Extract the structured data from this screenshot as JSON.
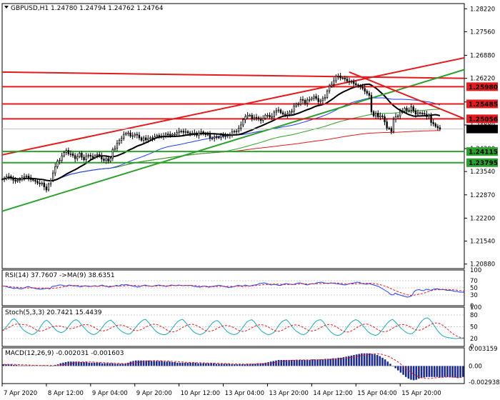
{
  "chart_data": [
    {
      "type": "candlestick",
      "symbol_line": "GBPUSD,H1  1.24780 1.24794 1.24762 1.24764",
      "price_axis": {
        "ticks": [
          "1.28220",
          "1.27560",
          "1.26880",
          "1.26220",
          "1.25540",
          "1.24880",
          "1.24200",
          "1.23540",
          "1.22870",
          "1.22200",
          "1.21540",
          "1.20880"
        ],
        "values": [
          1.2822,
          1.2756,
          1.2688,
          1.2622,
          1.2554,
          1.2488,
          1.242,
          1.2354,
          1.2287,
          1.222,
          1.2154,
          1.2088
        ],
        "ylim": [
          1.2075,
          1.2837
        ]
      },
      "horizontal_levels": [
        {
          "label": "1.25980",
          "value": 1.2598,
          "color": "#e41a1c"
        },
        {
          "label": "1.25485",
          "value": 1.25485,
          "color": "#e41a1c"
        },
        {
          "label": "1.25056",
          "value": 1.25056,
          "color": "#e41a1c"
        },
        {
          "label": "1.24764",
          "value": 1.24764,
          "color": "#000000"
        },
        {
          "label": "1.24115",
          "value": 1.24115,
          "color": "#2ca02c"
        },
        {
          "label": "1.23795",
          "value": 1.23795,
          "color": "#2ca02c"
        }
      ],
      "x_index_range": [
        0,
        209
      ],
      "close": [
        1.2332,
        1.2334,
        1.2339,
        1.234,
        1.2335,
        1.2329,
        1.2326,
        1.2329,
        1.2331,
        1.2336,
        1.2339,
        1.2341,
        1.2336,
        1.2331,
        1.2329,
        1.2326,
        1.2321,
        1.2319,
        1.2321,
        1.231,
        1.2301,
        1.2318,
        1.2329,
        1.235,
        1.2368,
        1.2384,
        1.2386,
        1.2399,
        1.2409,
        1.2415,
        1.2405,
        1.2405,
        1.24,
        1.2391,
        1.2397,
        1.2407,
        1.2395,
        1.2388,
        1.2398,
        1.2401,
        1.2398,
        1.2394,
        1.24,
        1.2403,
        1.2399,
        1.239,
        1.2386,
        1.2391,
        1.2384,
        1.2392,
        1.2417,
        1.2421,
        1.2435,
        1.2444,
        1.245,
        1.2461,
        1.2464,
        1.2465,
        1.2456,
        1.2457,
        1.2461,
        1.2459,
        1.2451,
        1.2444,
        1.2451,
        1.2445,
        1.2449,
        1.2451,
        1.245,
        1.2454,
        1.2458,
        1.2456,
        1.2454,
        1.2456,
        1.2462,
        1.2461,
        1.2458,
        1.2461,
        1.2461,
        1.2466,
        1.247,
        1.247,
        1.2467,
        1.2469,
        1.2465,
        1.2463,
        1.2464,
        1.2465,
        1.2458,
        1.2465,
        1.2468,
        1.2462,
        1.2461,
        1.2461,
        1.245,
        1.245,
        1.2454,
        1.2453,
        1.2452,
        1.2459,
        1.2455,
        1.2456,
        1.2458,
        1.2459,
        1.2468,
        1.247,
        1.247,
        1.2479,
        1.2488,
        1.2503,
        1.2512,
        1.2516,
        1.2516,
        1.2506,
        1.251,
        1.2509,
        1.2505,
        1.2501,
        1.2507,
        1.2516,
        1.2516,
        1.2511,
        1.2512,
        1.2525,
        1.253,
        1.2531,
        1.2523,
        1.2519,
        1.2516,
        1.2519,
        1.2525,
        1.2527,
        1.2542,
        1.2548,
        1.2548,
        1.2561,
        1.2559,
        1.255,
        1.256,
        1.2561,
        1.2565,
        1.257,
        1.2564,
        1.2555,
        1.2558,
        1.2564,
        1.2567,
        1.2586,
        1.26,
        1.2605,
        1.2615,
        1.2628,
        1.2629,
        1.2623,
        1.2623,
        1.262,
        1.2614,
        1.2612,
        1.2613,
        1.2607,
        1.2603,
        1.2599,
        1.2598,
        1.2593,
        1.2585,
        1.2579,
        1.2573,
        1.2526,
        1.2514,
        1.2522,
        1.2511,
        1.2514,
        1.2512,
        1.2497,
        1.2479,
        1.2478,
        1.2469,
        1.2504,
        1.2512,
        1.2514,
        1.2528,
        1.2527,
        1.2536,
        1.2529,
        1.253,
        1.254,
        1.2529,
        1.2519,
        1.2523,
        1.2522,
        1.2521,
        1.2519,
        1.2512,
        1.2516,
        1.2495,
        1.2491,
        1.2484,
        1.248,
        1.2476
      ],
      "x_tick_labels": [
        {
          "label": "7 Apr 2020",
          "index": 0
        },
        {
          "label": "8 Apr 12:00",
          "index": 20
        },
        {
          "label": "9 Apr 04:00",
          "index": 40
        },
        {
          "label": "9 Apr 20:00",
          "index": 60
        },
        {
          "label": "10 Apr 12:00",
          "index": 80
        },
        {
          "label": "13 Apr 04:00",
          "index": 100
        },
        {
          "label": "13 Apr 20:00",
          "index": 120
        },
        {
          "label": "14 Apr 12:00",
          "index": 140
        },
        {
          "label": "15 Apr 04:00",
          "index": 160
        },
        {
          "label": "15 Apr 20:00",
          "index": 180
        }
      ],
      "trend_lines": [
        {
          "name": "upper-red-channel",
          "color": "#e41a1c",
          "from": [
            0,
            1.2402
          ],
          "to": [
            209,
            1.2681
          ]
        },
        {
          "name": "upper-red-flat",
          "color": "#e41a1c",
          "from": [
            0,
            1.264
          ],
          "to": [
            209,
            1.2622
          ]
        },
        {
          "name": "lower-green-trend",
          "color": "#2ca02c",
          "from": [
            0,
            1.224
          ],
          "to": [
            209,
            1.2647
          ]
        },
        {
          "name": "descending-red",
          "color": "#e41a1c",
          "from": [
            157,
            1.264
          ],
          "to": [
            209,
            1.2506
          ]
        }
      ],
      "legend": "",
      "grid": false
    },
    {
      "type": "line",
      "indicator": "RSI",
      "title": "RSI(14) 37.7607  ->MA(9) 38.6351",
      "ylim": [
        0,
        100
      ],
      "levels": [
        100,
        70,
        50,
        30,
        0
      ],
      "series": [
        {
          "name": "RSI(14)",
          "values": [
            55,
            55,
            53,
            51,
            50,
            48,
            50,
            48,
            47,
            49,
            52,
            54,
            51,
            50,
            48,
            47,
            46,
            47,
            48,
            49,
            47,
            54,
            55,
            56,
            58,
            58,
            56,
            55,
            58,
            57,
            55,
            56,
            54,
            53,
            55,
            56,
            54,
            54,
            55,
            56,
            54,
            56,
            58,
            55,
            54,
            52,
            54,
            55,
            57,
            55,
            59,
            58,
            59,
            58,
            56,
            55,
            54,
            52,
            54,
            56,
            58,
            56,
            55,
            54,
            56,
            57,
            58,
            56,
            55,
            54,
            56,
            58,
            57,
            56,
            58,
            57,
            56,
            57,
            56,
            57,
            55,
            54,
            53,
            52,
            54,
            55,
            53,
            52,
            54,
            55,
            56,
            57,
            56,
            54,
            53,
            51,
            52,
            53,
            55,
            57,
            56,
            55,
            58,
            56,
            55,
            57,
            58,
            59,
            62,
            63,
            64,
            62,
            60,
            58,
            60,
            59,
            57,
            57,
            60,
            62,
            61,
            60,
            59,
            61,
            63,
            64,
            62,
            60,
            58,
            60,
            62,
            61,
            64,
            65,
            66,
            64,
            63,
            62,
            64,
            63,
            62,
            61,
            60,
            59,
            58,
            60,
            62,
            63,
            64,
            66,
            65,
            62,
            61,
            60,
            62,
            60,
            58,
            56,
            54,
            50,
            46,
            42,
            38,
            32,
            30,
            35,
            32,
            30,
            28,
            26,
            24,
            25,
            28,
            40,
            44,
            45,
            43,
            42,
            46,
            45,
            43,
            46,
            47,
            47,
            45,
            46,
            44,
            43,
            43,
            42,
            40,
            40,
            38,
            38,
            37
          ]
        }
      ]
    },
    {
      "type": "line",
      "indicator": "Stochastic",
      "title": "Stoch(5,3,3) 20.7421 15.4439",
      "ylim": [
        0,
        100
      ],
      "levels": [
        100,
        80,
        50,
        20,
        0
      ],
      "series": [
        {
          "name": "Stoch(5,3,3)",
          "values": [
            40,
            45,
            52,
            60,
            68,
            70,
            64,
            55,
            46,
            40,
            36,
            33,
            30,
            32,
            37,
            44,
            55,
            63,
            67,
            62,
            55,
            47,
            40,
            37,
            35,
            38,
            43,
            52,
            60,
            66,
            68,
            64,
            56,
            49,
            42,
            36,
            32,
            30,
            32,
            37,
            44,
            53,
            60,
            65,
            67,
            61,
            54,
            46,
            40,
            36,
            33,
            31,
            33,
            40,
            48,
            56,
            62,
            67,
            69,
            63,
            55,
            47,
            40,
            35,
            32,
            30,
            30,
            33,
            39,
            47,
            56,
            63,
            67,
            69,
            63,
            55,
            47,
            40,
            35,
            32,
            30,
            32,
            36,
            43,
            51,
            59,
            64,
            66,
            61,
            53,
            45,
            38,
            34,
            31,
            30,
            32,
            37,
            45,
            54,
            62,
            66,
            68,
            63,
            54,
            46,
            39,
            35,
            31,
            30,
            32,
            36,
            44,
            54,
            62,
            66,
            68,
            62,
            53,
            45,
            39,
            35,
            31,
            30,
            33,
            39,
            48,
            57,
            64,
            67,
            68,
            62,
            53,
            44,
            37,
            32,
            29,
            28,
            30,
            35,
            43,
            52,
            60,
            65,
            68,
            66,
            60,
            53,
            45,
            38,
            33,
            30,
            28,
            30,
            36,
            44,
            53,
            60,
            66,
            69,
            63,
            56,
            49,
            43,
            38,
            34,
            32,
            33,
            39,
            48,
            58,
            66,
            71,
            73,
            69,
            61,
            51,
            42,
            34,
            28,
            25,
            23,
            22,
            21,
            20,
            20,
            21,
            20,
            21
          ]
        }
      ]
    },
    {
      "type": "bar",
      "indicator": "MACD",
      "title": "MACD(12,26,9) -0.002031 -0.001603",
      "ylim": [
        -0.0032,
        0.0033
      ],
      "y_tick_labels": [
        "0.003159",
        "0.00",
        "-0.002938"
      ],
      "series": [
        {
          "name": "MACD(12,26,9)",
          "values": [
            0.0003,
            0.0003,
            0.0003,
            0.0003,
            0.0002,
            0.0002,
            0.0001,
            0.0001,
            0.0001,
            0.0001,
            0.0001,
            0.0001,
            0.0001,
            0.0001,
            0.0001,
            0.0001,
            0.0001,
            0.0001,
            0.0,
            0.0,
            0.0002,
            0.0003,
            0.0005,
            0.0006,
            0.0007,
            0.0008,
            0.0008,
            0.0008,
            0.0008,
            0.0008,
            0.0007,
            0.0007,
            0.0007,
            0.0006,
            0.0006,
            0.0006,
            0.0006,
            0.0006,
            0.0005,
            0.0005,
            0.0005,
            0.0005,
            0.0005,
            0.0004,
            0.0004,
            0.0004,
            0.0004,
            0.0004,
            0.0006,
            0.0008,
            0.0009,
            0.001,
            0.001,
            0.001,
            0.001,
            0.001,
            0.001,
            0.0009,
            0.0009,
            0.0009,
            0.0009,
            0.0009,
            0.0008,
            0.0008,
            0.0008,
            0.0007,
            0.0007,
            0.0006,
            0.0006,
            0.0006,
            0.0006,
            0.0006,
            0.0006,
            0.0006,
            0.0006,
            0.0005,
            0.0005,
            0.0005,
            0.0005,
            0.0005,
            0.0005,
            0.0005,
            0.0004,
            0.0004,
            0.0004,
            0.0004,
            0.0004,
            0.0004,
            0.0003,
            0.0003,
            0.0003,
            0.0003,
            0.0003,
            0.0003,
            0.0004,
            0.0004,
            0.0004,
            0.0004,
            0.0005,
            0.0005,
            0.0005,
            0.0006,
            0.0007,
            0.0008,
            0.0009,
            0.001,
            0.0011,
            0.0011,
            0.0011,
            0.0011,
            0.0011,
            0.0011,
            0.0011,
            0.0011,
            0.0011,
            0.0011,
            0.0011,
            0.0011,
            0.0011,
            0.0012,
            0.0012,
            0.0012,
            0.0012,
            0.0012,
            0.0013,
            0.0013,
            0.0013,
            0.0014,
            0.0014,
            0.0015,
            0.0015,
            0.0016,
            0.0017,
            0.0018,
            0.0019,
            0.002,
            0.0021,
            0.0022,
            0.0023,
            0.0023,
            0.0023,
            0.0023,
            0.0022,
            0.0021,
            0.002,
            0.0018,
            0.0015,
            0.0012,
            0.0008,
            0.0004,
            0.0,
            -0.0004,
            -0.0008,
            -0.0012,
            -0.0016,
            -0.002,
            -0.0023,
            -0.0025,
            -0.0026,
            -0.0025,
            -0.0023,
            -0.0022,
            -0.0021,
            -0.002,
            -0.002,
            -0.002,
            -0.002,
            -0.002,
            -0.0021,
            -0.0021,
            -0.002,
            -0.002,
            -0.002,
            -0.0021,
            -0.0021,
            -0.0022,
            -0.0021,
            -0.002
          ]
        }
      ]
    }
  ],
  "colors": {
    "up": "#000000",
    "down": "#000000",
    "bg": "#ffffff",
    "red": "#e41a1c",
    "green": "#2ca02c",
    "blue": "#1f3cff",
    "darkgreen": "#145214"
  }
}
